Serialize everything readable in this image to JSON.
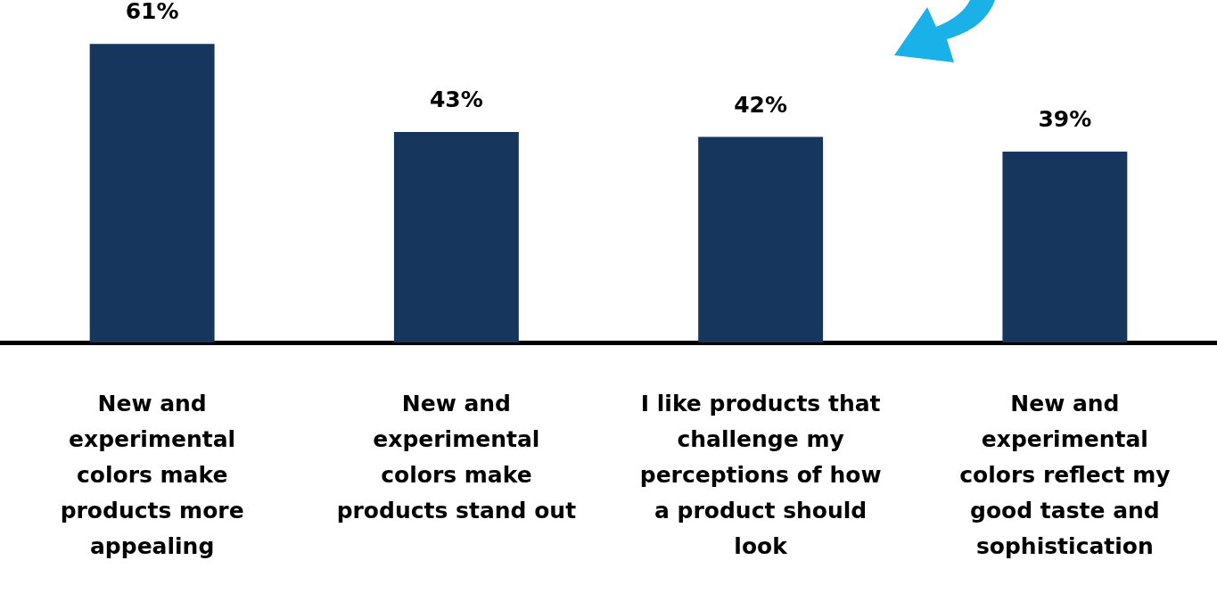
{
  "chart_data": {
    "type": "bar",
    "categories": [
      "New and experimental colors make products more appealing",
      "New and experimental colors make products stand out",
      "I like products that challenge my perceptions of how a product should look",
      "New and experimental colors reflect my good taste and sophistication"
    ],
    "values": [
      61,
      43,
      42,
      39
    ],
    "value_labels": [
      "61%",
      "43%",
      "42%",
      "39%"
    ],
    "color": "#17365d",
    "grid": false,
    "legend": false
  }
}
